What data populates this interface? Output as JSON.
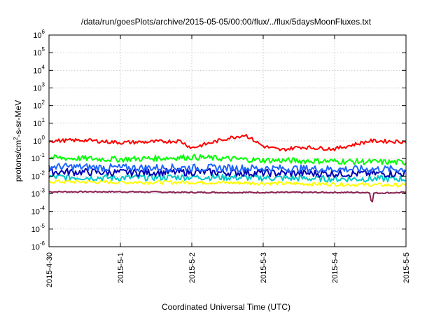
{
  "chart_data": {
    "type": "line",
    "title": "/data/run/goesPlots/archive/2015-05-05/00:00/flux/../flux/5daysMoonFluxes.txt",
    "xlabel": "Coordinated Universal Time (UTC)",
    "ylabel_parts": {
      "base": "protons/cm",
      "sup": "2",
      "rest": "-s-sr-MeV"
    },
    "y_scale": "log",
    "ylim": [
      1e-06,
      1000000.0
    ],
    "y_ticks": [
      {
        "exp": "-6",
        "value": 1e-06
      },
      {
        "exp": "-5",
        "value": 1e-05
      },
      {
        "exp": "-4",
        "value": 0.0001
      },
      {
        "exp": "-3",
        "value": 0.001
      },
      {
        "exp": "-2",
        "value": 0.01
      },
      {
        "exp": "-1",
        "value": 0.1
      },
      {
        "exp": "0",
        "value": 1
      },
      {
        "exp": "1",
        "value": 10
      },
      {
        "exp": "2",
        "value": 100
      },
      {
        "exp": "3",
        "value": 1000
      },
      {
        "exp": "4",
        "value": 10000
      },
      {
        "exp": "5",
        "value": 100000
      },
      {
        "exp": "6",
        "value": 1000000
      }
    ],
    "y_tick_base": "10",
    "x_range": [
      "2015-04-30",
      "2015-05-05"
    ],
    "x_ticks": [
      "2015-4-30",
      "2015-5-1",
      "2015-5-2",
      "2015-5-3",
      "2015-5-4",
      "2015-5-5"
    ],
    "x_tick_dates": [
      "2015-04-30",
      "2015-05-01",
      "2015-05-02",
      "2015-05-03",
      "2015-05-04",
      "2015-05-05"
    ],
    "grid": true,
    "series": [
      {
        "color": "#ff0000",
        "x": [
          "2015-04-30",
          "2015-04-30T12:00",
          "2015-05-01",
          "2015-05-01T12:00",
          "2015-05-01T20:00",
          "2015-05-02",
          "2015-05-02T12:00",
          "2015-05-02T18:00",
          "2015-05-03",
          "2015-05-03T06:00",
          "2015-05-03T12:00",
          "2015-05-04",
          "2015-05-04T12:00",
          "2015-05-05"
        ],
        "values": [
          1.0,
          1.1,
          0.8,
          0.9,
          1.0,
          0.4,
          1.4,
          2.2,
          0.5,
          0.3,
          0.45,
          0.35,
          1.0,
          0.9
        ]
      },
      {
        "color": "#00ff00",
        "x": [
          "2015-04-30",
          "2015-05-01",
          "2015-05-02",
          "2015-05-03",
          "2015-05-04",
          "2015-05-05"
        ],
        "values": [
          0.11,
          0.09,
          0.12,
          0.08,
          0.07,
          0.06
        ]
      },
      {
        "color": "#1e64ff",
        "x": [
          "2015-04-30",
          "2015-05-01",
          "2015-05-02",
          "2015-05-03",
          "2015-05-04",
          "2015-05-05"
        ],
        "values": [
          0.035,
          0.03,
          0.03,
          0.028,
          0.025,
          0.025
        ]
      },
      {
        "color": "#0000b4",
        "x": [
          "2015-04-30",
          "2015-05-01",
          "2015-05-02",
          "2015-05-03",
          "2015-05-04",
          "2015-05-05"
        ],
        "values": [
          0.018,
          0.016,
          0.017,
          0.015,
          0.014,
          0.014
        ]
      },
      {
        "color": "#00c8c8",
        "x": [
          "2015-04-30",
          "2015-05-01",
          "2015-05-02",
          "2015-05-03",
          "2015-05-04",
          "2015-05-05"
        ],
        "values": [
          0.009,
          0.008,
          0.009,
          0.008,
          0.007,
          0.007
        ]
      },
      {
        "color": "#ffff00",
        "x": [
          "2015-04-30",
          "2015-05-01",
          "2015-05-02",
          "2015-05-03",
          "2015-05-04",
          "2015-05-05"
        ],
        "values": [
          0.005,
          0.0045,
          0.0045,
          0.004,
          0.0035,
          0.003
        ]
      },
      {
        "color": "#8b2252",
        "x": [
          "2015-04-30",
          "2015-05-01",
          "2015-05-02",
          "2015-05-03",
          "2015-05-04",
          "2015-05-04T12:00",
          "2015-05-04T12:30",
          "2015-05-04T13:00",
          "2015-05-05"
        ],
        "values": [
          0.0013,
          0.0013,
          0.0012,
          0.0012,
          0.0012,
          0.0012,
          0.00015,
          0.0011,
          0.0012
        ]
      }
    ]
  }
}
